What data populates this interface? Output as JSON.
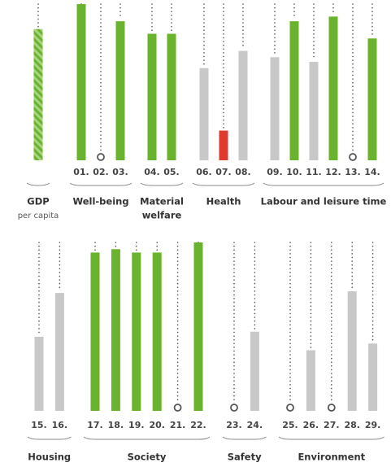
{
  "chart_data": {
    "type": "bar",
    "ylim": [
      0,
      100
    ],
    "rows": [
      {
        "groups": [
          {
            "label": "GDP",
            "sublabel": "per capita",
            "categories": [
              null
            ],
            "values": [
              84
            ],
            "colors": [
              "#7dbb42"
            ],
            "pattern": "hatched"
          },
          {
            "label": "Well-being",
            "categories": [
              "01.",
              "02.",
              "03."
            ],
            "values": [
              100,
              null,
              89
            ],
            "colors": [
              "#6ab42d",
              null,
              "#6ab42d"
            ]
          },
          {
            "label": "Material",
            "sublabel": "welfare",
            "categories": [
              "04.",
              "05."
            ],
            "values": [
              81,
              81
            ],
            "colors": [
              "#6ab42d",
              "#6ab42d"
            ]
          },
          {
            "label": "Health",
            "categories": [
              "06.",
              "07.",
              "08."
            ],
            "values": [
              59,
              19,
              70
            ],
            "colors": [
              "#c8c8c8",
              "#e03a2e",
              "#c8c8c8"
            ]
          },
          {
            "label": "Labour and leisure time",
            "categories": [
              "09.",
              "10.",
              "11.",
              "12.",
              "13.",
              "14."
            ],
            "values": [
              66,
              89,
              63,
              92,
              null,
              78
            ],
            "colors": [
              "#c8c8c8",
              "#6ab42d",
              "#c8c8c8",
              "#6ab42d",
              null,
              "#6ab42d"
            ]
          }
        ]
      },
      {
        "groups": [
          {
            "label": "Housing",
            "categories": [
              "15.",
              "16."
            ],
            "values": [
              44,
              70
            ],
            "colors": [
              "#c8c8c8",
              "#c8c8c8"
            ]
          },
          {
            "label": "Society",
            "categories": [
              "17.",
              "18.",
              "19.",
              "20.",
              "21.",
              "22."
            ],
            "values": [
              94,
              96,
              94,
              94,
              null,
              100
            ],
            "colors": [
              "#6ab42d",
              "#6ab42d",
              "#6ab42d",
              "#6ab42d",
              null,
              "#6ab42d"
            ]
          },
          {
            "label": "Safety",
            "categories": [
              "23.",
              "24."
            ],
            "values": [
              null,
              47
            ],
            "colors": [
              null,
              "#c8c8c8"
            ]
          },
          {
            "label": "Environment",
            "categories": [
              "25.",
              "26.",
              "27.",
              "28.",
              "29."
            ],
            "values": [
              null,
              36,
              null,
              71,
              40
            ],
            "colors": [
              null,
              "#c8c8c8",
              null,
              "#c8c8c8",
              "#c8c8c8"
            ]
          }
        ]
      }
    ]
  }
}
